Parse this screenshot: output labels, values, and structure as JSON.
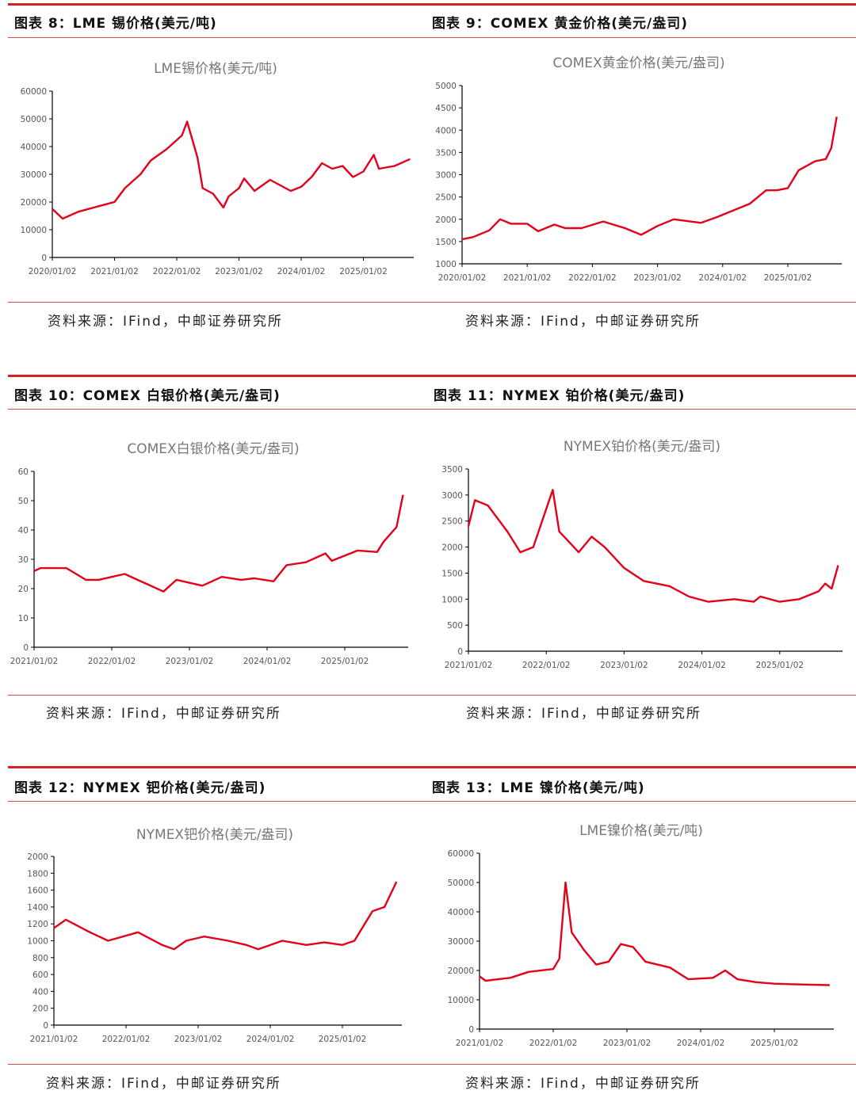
{
  "accent_color": "#e3001b",
  "source_text": "资料来源：IFind，中邮证券研究所",
  "headers": [
    "图表 8：LME 锡价格(美元/吨)",
    "图表 9：COMEX 黄金价格(美元/盎司)",
    "图表 10：COMEX 白银价格(美元/盎司)",
    "图表 11：NYMEX 铂价格(美元/盎司)",
    "图表 12：NYMEX 钯价格(美元/盎司)",
    "图表 13：LME 镍价格(美元/吨)"
  ],
  "chart_data": [
    {
      "type": "line",
      "title": "LME锡价格(美元/吨)",
      "ylim": [
        0,
        60000
      ],
      "yticks": [
        "0",
        "10000",
        "20000",
        "30000",
        "40000",
        "50000",
        "60000"
      ],
      "xticks": [
        "2020/01/02",
        "2021/01/02",
        "2022/01/02",
        "2023/01/02",
        "2024/01/02",
        "2025/01/02"
      ],
      "grid": false,
      "points": [
        [
          "2020-01",
          17500
        ],
        [
          "2020-03",
          14000
        ],
        [
          "2020-06",
          16500
        ],
        [
          "2020-09",
          18000
        ],
        [
          "2021-01",
          20000
        ],
        [
          "2021-03",
          25000
        ],
        [
          "2021-06",
          30000
        ],
        [
          "2021-08",
          35000
        ],
        [
          "2021-11",
          39000
        ],
        [
          "2022-02",
          44000
        ],
        [
          "2022-03",
          49000
        ],
        [
          "2022-05",
          36000
        ],
        [
          "2022-06",
          25000
        ],
        [
          "2022-08",
          23000
        ],
        [
          "2022-10",
          18000
        ],
        [
          "2022-11",
          22000
        ],
        [
          "2023-01",
          25000
        ],
        [
          "2023-02",
          28500
        ],
        [
          "2023-04",
          24000
        ],
        [
          "2023-07",
          28000
        ],
        [
          "2023-09",
          26000
        ],
        [
          "2023-11",
          24000
        ],
        [
          "2024-01",
          25500
        ],
        [
          "2024-03",
          29000
        ],
        [
          "2024-05",
          34000
        ],
        [
          "2024-07",
          32000
        ],
        [
          "2024-09",
          33000
        ],
        [
          "2024-11",
          29000
        ],
        [
          "2025-01",
          31000
        ],
        [
          "2025-03",
          37000
        ],
        [
          "2025-04",
          32000
        ],
        [
          "2025-07",
          33000
        ],
        [
          "2025-10",
          35500
        ]
      ]
    },
    {
      "type": "line",
      "title": "COMEX黄金价格(美元/盎司)",
      "ylim": [
        1000,
        5000
      ],
      "yticks": [
        "1000",
        "1500",
        "2000",
        "2500",
        "3000",
        "3500",
        "4000",
        "4500",
        "5000"
      ],
      "xticks": [
        "2020/01/02",
        "2021/01/02",
        "2022/01/02",
        "2023/01/02",
        "2024/01/02",
        "2025/01/02"
      ],
      "grid": false,
      "points": [
        [
          "2020-01",
          1550
        ],
        [
          "2020-03",
          1600
        ],
        [
          "2020-06",
          1750
        ],
        [
          "2020-08",
          2000
        ],
        [
          "2020-10",
          1900
        ],
        [
          "2021-01",
          1900
        ],
        [
          "2021-03",
          1730
        ],
        [
          "2021-06",
          1880
        ],
        [
          "2021-08",
          1800
        ],
        [
          "2021-11",
          1800
        ],
        [
          "2022-03",
          1950
        ],
        [
          "2022-07",
          1800
        ],
        [
          "2022-10",
          1650
        ],
        [
          "2023-01",
          1850
        ],
        [
          "2023-04",
          2000
        ],
        [
          "2023-09",
          1920
        ],
        [
          "2023-12",
          2050
        ],
        [
          "2024-03",
          2200
        ],
        [
          "2024-06",
          2350
        ],
        [
          "2024-09",
          2650
        ],
        [
          "2024-11",
          2650
        ],
        [
          "2025-01",
          2700
        ],
        [
          "2025-03",
          3100
        ],
        [
          "2025-06",
          3300
        ],
        [
          "2025-08",
          3350
        ],
        [
          "2025-09",
          3600
        ],
        [
          "2025-10",
          4300
        ]
      ]
    },
    {
      "type": "line",
      "title": "COMEX白银价格(美元/盎司)",
      "ylim": [
        0,
        60
      ],
      "yticks": [
        "0",
        "10",
        "20",
        "30",
        "40",
        "50",
        "60"
      ],
      "xticks": [
        "2021/01/02",
        "2022/01/02",
        "2023/01/02",
        "2024/01/02",
        "2025/01/02"
      ],
      "grid": false,
      "points": [
        [
          "2021-01",
          26
        ],
        [
          "2021-02",
          27
        ],
        [
          "2021-06",
          27
        ],
        [
          "2021-09",
          23
        ],
        [
          "2021-11",
          23
        ],
        [
          "2022-03",
          25
        ],
        [
          "2022-06",
          22
        ],
        [
          "2022-09",
          19
        ],
        [
          "2022-11",
          23
        ],
        [
          "2023-03",
          21
        ],
        [
          "2023-06",
          24
        ],
        [
          "2023-09",
          23
        ],
        [
          "2023-11",
          23.5
        ],
        [
          "2024-02",
          22.5
        ],
        [
          "2024-04",
          28
        ],
        [
          "2024-07",
          29
        ],
        [
          "2024-10",
          32
        ],
        [
          "2024-11",
          29.5
        ],
        [
          "2025-03",
          33
        ],
        [
          "2025-06",
          32.5
        ],
        [
          "2025-07",
          36
        ],
        [
          "2025-09",
          41
        ],
        [
          "2025-10",
          52
        ]
      ]
    },
    {
      "type": "line",
      "title": "NYMEX铂价格(美元/盎司)",
      "ylim": [
        0,
        3500
      ],
      "yticks": [
        "0",
        "500",
        "1000",
        "1500",
        "2000",
        "2500",
        "3000",
        "3500"
      ],
      "xticks": [
        "2021/01/02",
        "2022/01/02",
        "2023/01/02",
        "2024/01/02",
        "2025/01/02"
      ],
      "grid": false,
      "points": [
        [
          "2021-01",
          2400
        ],
        [
          "2021-02",
          2900
        ],
        [
          "2021-04",
          2800
        ],
        [
          "2021-07",
          2300
        ],
        [
          "2021-09",
          1900
        ],
        [
          "2021-11",
          2000
        ],
        [
          "2022-02",
          3100
        ],
        [
          "2022-03",
          2300
        ],
        [
          "2022-06",
          1900
        ],
        [
          "2022-08",
          2200
        ],
        [
          "2022-10",
          2000
        ],
        [
          "2023-01",
          1600
        ],
        [
          "2023-04",
          1350
        ],
        [
          "2023-08",
          1250
        ],
        [
          "2023-11",
          1050
        ],
        [
          "2024-02",
          950
        ],
        [
          "2024-06",
          1000
        ],
        [
          "2024-09",
          950
        ],
        [
          "2024-10",
          1050
        ],
        [
          "2025-01",
          950
        ],
        [
          "2025-04",
          1000
        ],
        [
          "2025-07",
          1150
        ],
        [
          "2025-08",
          1300
        ],
        [
          "2025-09",
          1200
        ],
        [
          "2025-10",
          1650
        ]
      ]
    },
    {
      "type": "line",
      "title": "NYMEX钯价格(美元/盎司)",
      "ylim": [
        0,
        2000
      ],
      "yticks": [
        "0",
        "200",
        "400",
        "600",
        "800",
        "1000",
        "1200",
        "1400",
        "1600",
        "1800",
        "2000"
      ],
      "xticks": [
        "2021/01/02",
        "2022/01/02",
        "2023/01/02",
        "2024/01/02",
        "2025/01/02"
      ],
      "grid": false,
      "points": [
        [
          "2021-01",
          1150
        ],
        [
          "2021-03",
          1250
        ],
        [
          "2021-07",
          1100
        ],
        [
          "2021-10",
          1000
        ],
        [
          "2022-03",
          1100
        ],
        [
          "2022-07",
          950
        ],
        [
          "2022-09",
          900
        ],
        [
          "2022-11",
          1000
        ],
        [
          "2023-02",
          1050
        ],
        [
          "2023-06",
          1000
        ],
        [
          "2023-09",
          950
        ],
        [
          "2023-11",
          900
        ],
        [
          "2024-03",
          1000
        ],
        [
          "2024-07",
          950
        ],
        [
          "2024-10",
          980
        ],
        [
          "2025-01",
          950
        ],
        [
          "2025-03",
          1000
        ],
        [
          "2025-06",
          1350
        ],
        [
          "2025-08",
          1400
        ],
        [
          "2025-10",
          1700
        ]
      ]
    },
    {
      "type": "line",
      "title": "LME镍价格(美元/吨)",
      "ylim": [
        0,
        60000
      ],
      "yticks": [
        "0",
        "10000",
        "20000",
        "30000",
        "40000",
        "50000",
        "60000"
      ],
      "xticks": [
        "2021/01/02",
        "2022/01/02",
        "2023/01/02",
        "2024/01/02",
        "2025/01/02"
      ],
      "grid": false,
      "points": [
        [
          "2021-01",
          18000
        ],
        [
          "2021-02",
          16500
        ],
        [
          "2021-06",
          17500
        ],
        [
          "2021-09",
          19500
        ],
        [
          "2022-01",
          20500
        ],
        [
          "2022-02",
          24000
        ],
        [
          "2022-03",
          50000
        ],
        [
          "2022-04",
          33000
        ],
        [
          "2022-06",
          27000
        ],
        [
          "2022-08",
          22000
        ],
        [
          "2022-10",
          23000
        ],
        [
          "2022-12",
          29000
        ],
        [
          "2023-02",
          28000
        ],
        [
          "2023-04",
          23000
        ],
        [
          "2023-08",
          21000
        ],
        [
          "2023-11",
          17000
        ],
        [
          "2024-03",
          17500
        ],
        [
          "2024-05",
          20000
        ],
        [
          "2024-07",
          17000
        ],
        [
          "2024-10",
          16000
        ],
        [
          "2025-01",
          15500
        ],
        [
          "2025-04",
          15300
        ],
        [
          "2025-10",
          15000
        ]
      ]
    }
  ]
}
